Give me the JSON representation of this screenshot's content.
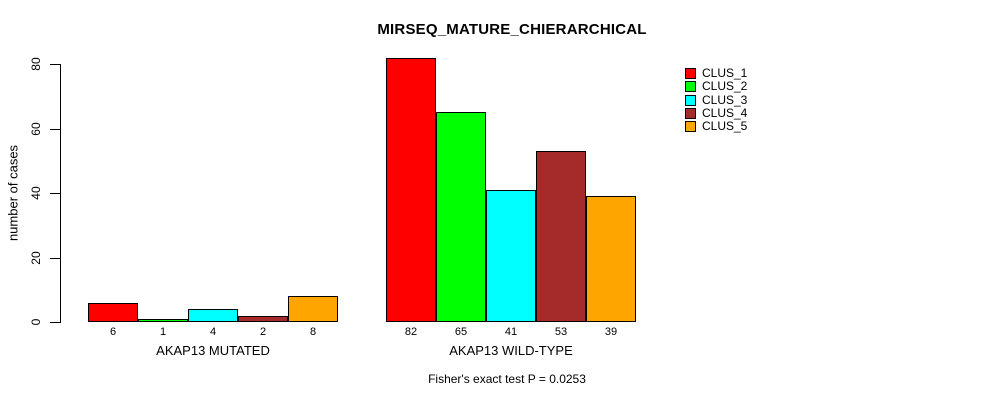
{
  "chart_data": {
    "type": "bar",
    "title": "MIRSEQ_MATURE_CHIERARCHICAL",
    "ylabel": "number of cases",
    "xlabel": "",
    "ylim": [
      0,
      80
    ],
    "yticks": [
      0,
      20,
      40,
      60,
      80
    ],
    "grid": false,
    "legend_position": "top-right",
    "categories": [
      "AKAP13 MUTATED",
      "AKAP13 WILD-TYPE"
    ],
    "series": [
      {
        "name": "CLUS_1",
        "color": "#FF0000",
        "values": [
          6,
          82
        ]
      },
      {
        "name": "CLUS_2",
        "color": "#00FF00",
        "values": [
          1,
          65
        ]
      },
      {
        "name": "CLUS_3",
        "color": "#00FFFF",
        "values": [
          4,
          41
        ]
      },
      {
        "name": "CLUS_4",
        "color": "#A52A2A",
        "values": [
          2,
          53
        ]
      },
      {
        "name": "CLUS_5",
        "color": "#FFA500",
        "values": [
          8,
          39
        ]
      }
    ],
    "bar_value_labels": [
      [
        "6",
        "1",
        "4",
        "2",
        "8"
      ],
      [
        "82",
        "65",
        "41",
        "53",
        "39"
      ]
    ],
    "annotation": "Fisher's exact test P = 0.0253"
  }
}
